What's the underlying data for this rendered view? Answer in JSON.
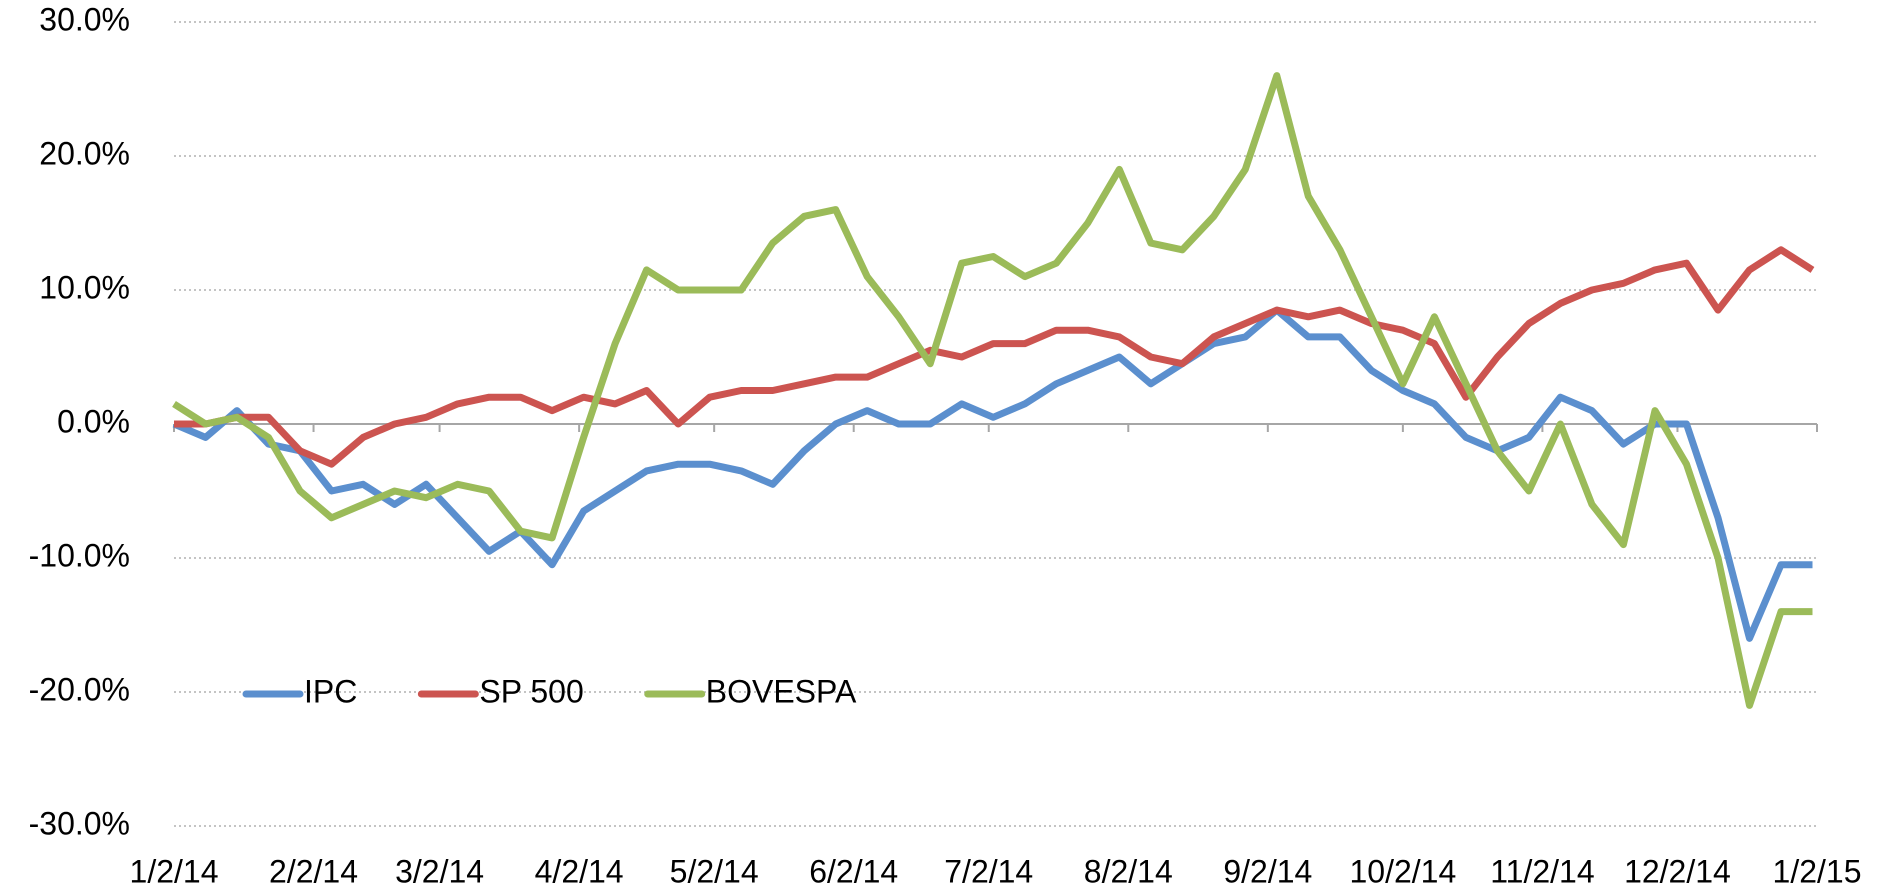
{
  "chart_data": {
    "type": "line",
    "x": [
      "1/2/14",
      "1/9/14",
      "1/16/14",
      "1/23/14",
      "1/30/14",
      "2/6/14",
      "2/13/14",
      "2/20/14",
      "2/27/14",
      "3/6/14",
      "3/13/14",
      "3/20/14",
      "3/27/14",
      "4/3/14",
      "4/10/14",
      "4/17/14",
      "4/24/14",
      "5/1/14",
      "5/8/14",
      "5/15/14",
      "5/22/14",
      "5/29/14",
      "6/5/14",
      "6/12/14",
      "6/19/14",
      "6/26/14",
      "7/3/14",
      "7/10/14",
      "7/17/14",
      "7/24/14",
      "7/31/14",
      "8/7/14",
      "8/14/14",
      "8/21/14",
      "8/28/14",
      "9/4/14",
      "9/11/14",
      "9/18/14",
      "9/25/14",
      "10/2/14",
      "10/9/14",
      "10/16/14",
      "10/23/14",
      "10/30/14",
      "11/6/14",
      "11/13/14",
      "11/20/14",
      "11/27/14",
      "12/4/14",
      "12/11/14",
      "12/18/14",
      "12/25/14",
      "1/1/15"
    ],
    "series": [
      {
        "name": "IPC",
        "color": "#5b8fce",
        "values": [
          0,
          -1,
          1,
          -1.5,
          -2,
          -5,
          -4.5,
          -6,
          -4.5,
          -7,
          -9.5,
          -8,
          -10.5,
          -6.5,
          -5,
          -3.5,
          -3,
          -3,
          -3.5,
          -4.5,
          -2,
          0,
          1,
          0,
          0,
          1.5,
          0.5,
          1.5,
          3,
          4,
          5,
          3,
          4.5,
          6,
          6.5,
          8.5,
          6.5,
          6.5,
          4,
          2.5,
          1.5,
          -1,
          -2,
          -1,
          2,
          1,
          -1.5,
          0,
          0,
          -7,
          -16,
          -10.5,
          -10.5
        ]
      },
      {
        "name": "SP 500",
        "color": "#cc5450",
        "values": [
          0,
          0,
          0.5,
          0.5,
          -2,
          -3,
          -1,
          0,
          0.5,
          1.5,
          2,
          2,
          1,
          2,
          1.5,
          2.5,
          0,
          2,
          2.5,
          2.5,
          3,
          3.5,
          3.5,
          4.5,
          5.5,
          5,
          6,
          6,
          7,
          7,
          6.5,
          5,
          4.5,
          6.5,
          7.5,
          8.5,
          8,
          8.5,
          7.5,
          7,
          6,
          2,
          5,
          7.5,
          9,
          10,
          10.5,
          11.5,
          12,
          8.5,
          11.5,
          13,
          11.5
        ]
      },
      {
        "name": "BOVESPA",
        "color": "#9bbb59",
        "values": [
          1.5,
          0,
          0.5,
          -1,
          -5,
          -7,
          -6,
          -5,
          -5.5,
          -4.5,
          -5,
          -8,
          -8.5,
          -1,
          6,
          11.5,
          10,
          10,
          10,
          13.5,
          15.5,
          16,
          11,
          8,
          4.5,
          12,
          12.5,
          11,
          12,
          15,
          19,
          13.5,
          13,
          15.5,
          19,
          26,
          17,
          13,
          8,
          3,
          8,
          3,
          -2,
          -5,
          0,
          -6,
          -9,
          1,
          -3,
          -10,
          -21,
          -14,
          -14
        ]
      }
    ],
    "xlim": [
      "1/2/14",
      "1/2/15"
    ],
    "xticks": [
      "1/2/14",
      "2/2/14",
      "3/2/14",
      "4/2/14",
      "5/2/14",
      "6/2/14",
      "7/2/14",
      "8/2/14",
      "9/2/14",
      "10/2/14",
      "11/2/14",
      "12/2/14",
      "1/2/15"
    ],
    "ylim": [
      -30,
      30
    ],
    "yticks": [
      {
        "value": -30,
        "label": "-30.0%"
      },
      {
        "value": -20,
        "label": "-20.0%"
      },
      {
        "value": -10,
        "label": "-10.0%"
      },
      {
        "value": 0,
        "label": "0.0%"
      },
      {
        "value": 10,
        "label": "10.0%"
      },
      {
        "value": 20,
        "label": "20.0%"
      },
      {
        "value": 30,
        "label": "30.0%"
      }
    ],
    "grid": true,
    "legend": "lower left"
  }
}
